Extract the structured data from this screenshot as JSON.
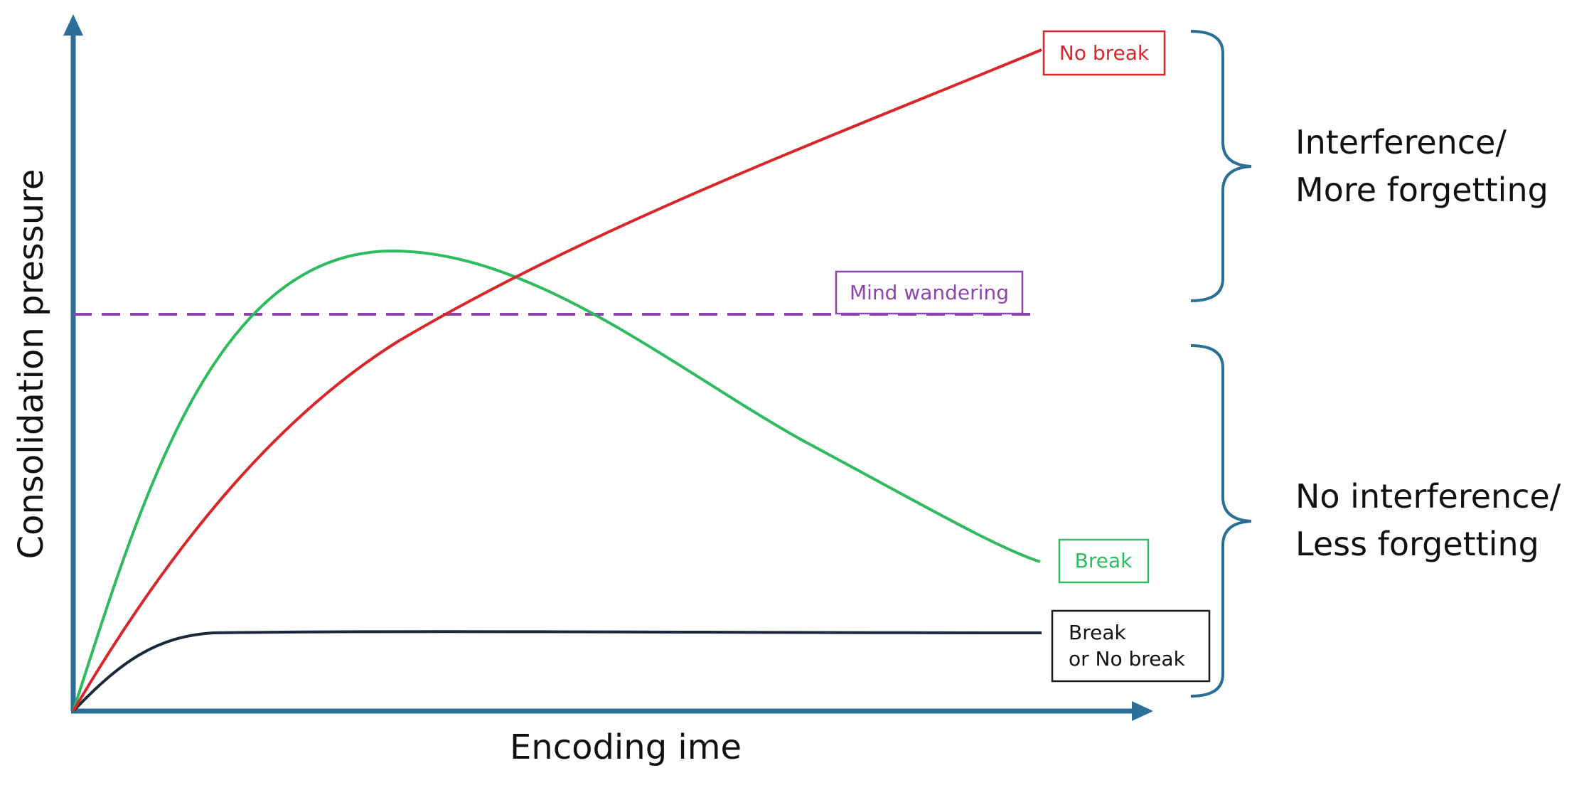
{
  "diagram": {
    "y_axis_label": "Consolidation pressure",
    "x_axis_label": "Encoding ime",
    "curves": [
      {
        "key": "no_break",
        "label": "No break",
        "color": "#d9262a"
      },
      {
        "key": "break",
        "label": "Break",
        "color": "#2dbb5d"
      },
      {
        "key": "flat",
        "label_lines": [
          "Break",
          "or No break"
        ],
        "color": "#1a2a3a"
      }
    ],
    "threshold": {
      "label": "Mind wandering",
      "color": "#8e44ad"
    },
    "brackets": {
      "upper_lines": [
        "Interference/",
        "More forgetting"
      ],
      "lower_lines": [
        "No interference/",
        "Less forgetting"
      ],
      "color": "#2a6f97"
    },
    "axis_color": "#2a6f97"
  }
}
